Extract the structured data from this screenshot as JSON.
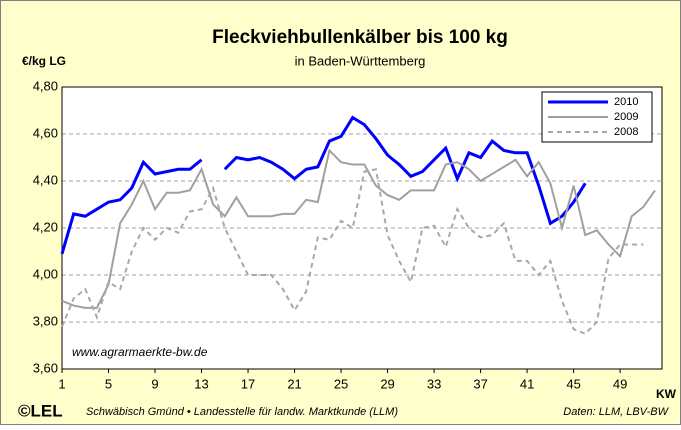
{
  "chart_data": {
    "type": "line",
    "title": "Fleckviehbullenkälber bis 100 kg",
    "subtitle": "in Baden-Württemberg",
    "y_label": "€/kg LG",
    "x_label": "KW",
    "annotation": "www.agrarmaerkte-bw.de",
    "logo": "©LEL",
    "footer": "Schwäbisch Gmünd • Landesstelle für landw. Marktkunde (LLM)",
    "source": "Daten: LLM, LBV-BW",
    "x": [
      1,
      2,
      3,
      4,
      5,
      6,
      7,
      8,
      9,
      10,
      11,
      12,
      13,
      14,
      15,
      16,
      17,
      18,
      19,
      20,
      21,
      22,
      23,
      24,
      25,
      26,
      27,
      28,
      29,
      30,
      31,
      32,
      33,
      34,
      35,
      36,
      37,
      38,
      39,
      40,
      41,
      42,
      43,
      44,
      45,
      46,
      47,
      48,
      49,
      50,
      51,
      52
    ],
    "xlim": [
      1,
      52
    ],
    "xticks": [
      1,
      5,
      9,
      13,
      17,
      21,
      25,
      29,
      33,
      37,
      41,
      45,
      49
    ],
    "ylim": [
      3.6,
      4.8
    ],
    "yticks": [
      {
        "value": 3.6,
        "label": "3,60"
      },
      {
        "value": 3.8,
        "label": "3,80"
      },
      {
        "value": 4.0,
        "label": "4,00"
      },
      {
        "value": 4.2,
        "label": "4,20"
      },
      {
        "value": 4.4,
        "label": "4,40"
      },
      {
        "value": 4.6,
        "label": "4,60"
      },
      {
        "value": 4.8,
        "label": "4,80"
      }
    ],
    "grid": true,
    "legend_position": "upper right",
    "series": [
      {
        "name": "2010",
        "color": "#0000ff",
        "width": 3,
        "line_style": "solid",
        "values": [
          4.09,
          4.26,
          4.25,
          4.28,
          4.31,
          4.32,
          4.37,
          4.48,
          4.43,
          4.44,
          4.45,
          4.45,
          4.49,
          null,
          4.45,
          4.5,
          4.49,
          4.5,
          4.48,
          4.45,
          4.41,
          4.45,
          4.46,
          4.57,
          4.59,
          4.67,
          4.64,
          4.58,
          4.51,
          4.47,
          4.42,
          4.44,
          4.49,
          4.54,
          4.41,
          4.52,
          4.5,
          4.57,
          4.53,
          4.52,
          4.52,
          4.38,
          4.22,
          4.25,
          4.31,
          4.39,
          null,
          null,
          null,
          null,
          null,
          null
        ]
      },
      {
        "name": "2009",
        "color": "#a0a0a0",
        "width": 2,
        "line_style": "solid",
        "values": [
          3.89,
          3.87,
          3.86,
          3.86,
          3.96,
          4.22,
          4.3,
          4.4,
          4.28,
          4.35,
          4.35,
          4.36,
          4.45,
          4.3,
          4.25,
          4.33,
          4.25,
          4.25,
          4.25,
          4.26,
          4.26,
          4.32,
          4.31,
          4.53,
          4.48,
          4.47,
          4.47,
          4.38,
          4.34,
          4.32,
          4.36,
          4.36,
          4.36,
          4.47,
          4.48,
          4.45,
          4.4,
          4.43,
          4.46,
          4.49,
          4.42,
          4.48,
          4.39,
          4.2,
          4.38,
          4.17,
          4.19,
          4.13,
          4.08,
          4.25,
          4.29,
          4.36
        ]
      },
      {
        "name": "2008",
        "color": "#a8a8a8",
        "width": 2,
        "line_style": "dashed",
        "values": [
          3.78,
          3.9,
          3.94,
          3.82,
          3.97,
          3.94,
          4.1,
          4.2,
          4.15,
          4.2,
          4.18,
          4.27,
          4.28,
          4.37,
          4.2,
          4.1,
          4.0,
          4.0,
          4.0,
          3.94,
          3.85,
          3.93,
          4.16,
          4.15,
          4.23,
          4.2,
          4.44,
          4.45,
          4.17,
          4.06,
          3.97,
          4.2,
          4.21,
          4.12,
          4.28,
          4.2,
          4.16,
          4.17,
          4.22,
          4.06,
          4.06,
          4.0,
          4.06,
          3.89,
          3.77,
          3.75,
          3.8,
          4.07,
          4.13,
          4.13,
          4.13,
          null
        ]
      }
    ]
  }
}
